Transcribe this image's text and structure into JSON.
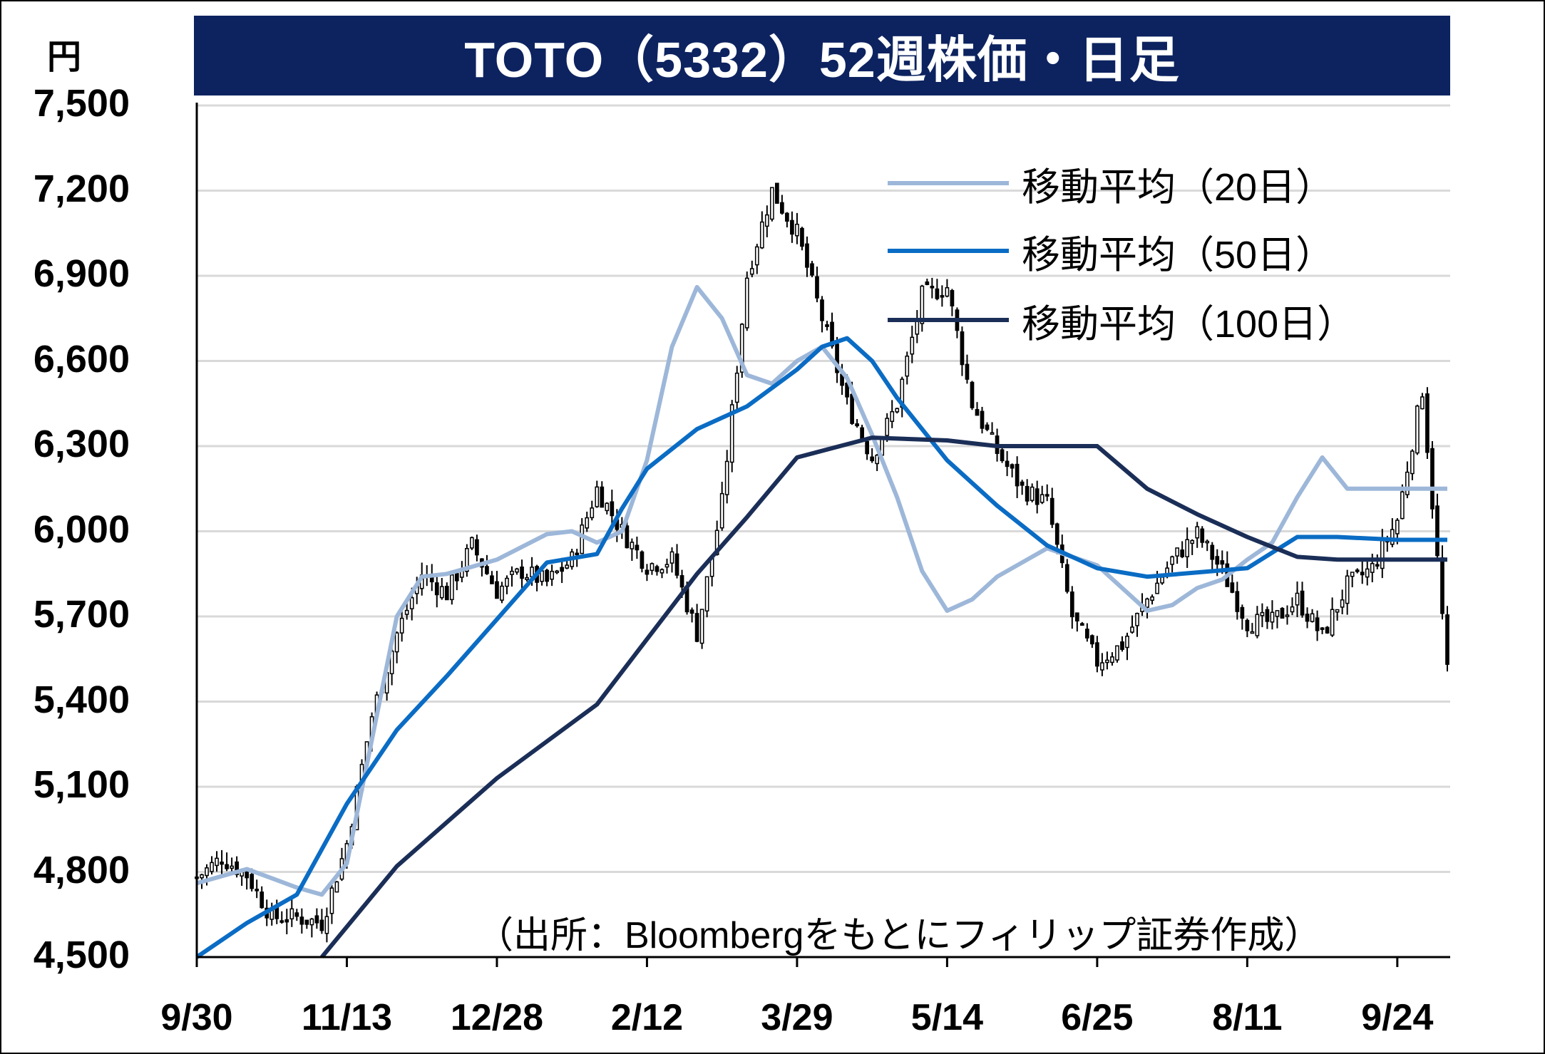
{
  "title": "TOTO（5332）52週株価・日足",
  "unit_label": "円",
  "source_note": "（出所：Bloombergをもとにフィリップ証券作成）",
  "colors": {
    "title_bg": "#0d2360",
    "title_text": "#ffffff",
    "grid": "#d9d9d9",
    "candle": "#000000",
    "ma20": "#9db7d9",
    "ma50": "#0a6cc4",
    "ma100": "#1a2e57"
  },
  "chart_data": {
    "type": "candlestick",
    "title": "TOTO（5332）52週株価・日足",
    "ylabel": "円",
    "ylim": [
      4500,
      7500
    ],
    "yticks": [
      4500,
      4800,
      5100,
      5400,
      5700,
      6000,
      6300,
      6600,
      6900,
      7200,
      7500
    ],
    "ytick_labels": [
      "4,500",
      "4,800",
      "5,100",
      "5,400",
      "5,700",
      "6,000",
      "6,300",
      "6,600",
      "6,900",
      "7,200",
      "7,500"
    ],
    "xticks": [
      "9/30",
      "11/13",
      "12/28",
      "2/12",
      "3/29",
      "5/14",
      "6/25",
      "8/11",
      "9/24"
    ],
    "grid": true,
    "legend_position": "top-right",
    "price_anchors": {
      "x": [
        0,
        5,
        10,
        15,
        20,
        25,
        30,
        35,
        40,
        45,
        50,
        55,
        60,
        65,
        70,
        75,
        80,
        85,
        90,
        95,
        100,
        105,
        110,
        115,
        120,
        125,
        130,
        135,
        140,
        145,
        150,
        155,
        160,
        165,
        170,
        175,
        180,
        185,
        190,
        195,
        200,
        205,
        210,
        215,
        220,
        225,
        230,
        235,
        240,
        245,
        250
      ],
      "close": [
        4780,
        4850,
        4790,
        4640,
        4640,
        4620,
        4900,
        5350,
        5640,
        5850,
        5780,
        5950,
        5790,
        5860,
        5820,
        5900,
        6150,
        6000,
        5880,
        5900,
        5640,
        6100,
        6900,
        7200,
        7050,
        6750,
        6450,
        6260,
        6450,
        6830,
        6860,
        6450,
        6280,
        6150,
        6100,
        5700,
        5540,
        5600,
        5760,
        5900,
        5990,
        5860,
        5680,
        5680,
        5760,
        5630,
        5810,
        5870,
        6040,
        6500,
        5500
      ]
    },
    "series": [
      {
        "name": "移動平均（20日）",
        "x": [
          0,
          10,
          20,
          25,
          30,
          40,
          45,
          50,
          60,
          70,
          75,
          80,
          85,
          90,
          95,
          100,
          105,
          110,
          115,
          120,
          125,
          130,
          135,
          140,
          145,
          150,
          155,
          160,
          165,
          170,
          175,
          180,
          185,
          190,
          195,
          200,
          205,
          210,
          215,
          220,
          225,
          230,
          235,
          240,
          245,
          250
        ],
        "values": [
          4760,
          4810,
          4745,
          4720,
          4830,
          5700,
          5840,
          5850,
          5900,
          5990,
          6000,
          5960,
          6000,
          6250,
          6650,
          6860,
          6750,
          6550,
          6520,
          6600,
          6650,
          6540,
          6340,
          6120,
          5860,
          5720,
          5760,
          5840,
          5890,
          5940,
          5910,
          5880,
          5800,
          5720,
          5740,
          5800,
          5830,
          5900,
          5960,
          6120,
          6260,
          6150,
          6150,
          6150,
          6150,
          6150
        ]
      },
      {
        "name": "移動平均（50日）",
        "x": [
          0,
          10,
          20,
          30,
          40,
          50,
          60,
          70,
          80,
          85,
          90,
          100,
          110,
          120,
          125,
          130,
          135,
          140,
          150,
          160,
          170,
          180,
          190,
          200,
          210,
          220,
          228,
          240,
          250
        ],
        "values": [
          4480,
          4620,
          4720,
          5040,
          5300,
          5490,
          5690,
          5890,
          5920,
          6080,
          6220,
          6360,
          6440,
          6570,
          6650,
          6680,
          6600,
          6470,
          6250,
          6090,
          5950,
          5870,
          5840,
          5855,
          5870,
          5980,
          5980,
          5970,
          5970
        ]
      },
      {
        "name": "移動平均（100日）",
        "x": [
          25,
          40,
          60,
          80,
          100,
          110,
          120,
          135,
          150,
          160,
          170,
          180,
          190,
          200,
          210,
          220,
          228,
          240,
          250
        ],
        "values": [
          4440,
          4820,
          5130,
          5390,
          5850,
          6050,
          6260,
          6330,
          6320,
          6300,
          6300,
          6300,
          6150,
          6060,
          5980,
          5910,
          5900,
          5900,
          5900
        ]
      }
    ]
  },
  "legend": {
    "ma20": "移動平均（20日）",
    "ma50": "移動平均（50日）",
    "ma100": "移動平均（100日）"
  }
}
